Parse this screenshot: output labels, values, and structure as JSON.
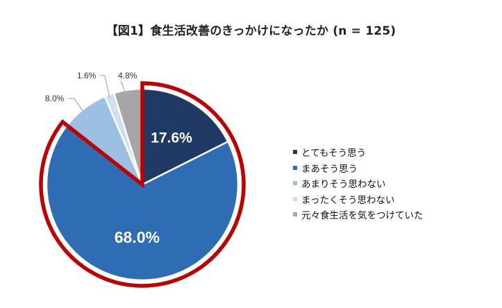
{
  "chart_data": {
    "type": "pie",
    "title": "【図1】食生活改善のきっかけになったか (n = 125)",
    "categories": [
      "とてもそう思う",
      "まあそう思う",
      "あまりそう思わない",
      "まったくそう思わない",
      "元々食生活を気をつけていた"
    ],
    "values": [
      17.6,
      68.0,
      8.0,
      1.6,
      4.8
    ],
    "labels": [
      "17.6%",
      "68.0%",
      "8.0%",
      "1.6%",
      "4.8%"
    ],
    "colors": [
      "#1f3864",
      "#2e6db3",
      "#9cbfe4",
      "#cfe0f3",
      "#a6a6a6"
    ],
    "highlight_color": "#c00000",
    "highlighted_categories": [
      "とてもそう思う",
      "まあそう思う"
    ],
    "legend_placement": "right",
    "start_angle": "12 o'clock, clockwise"
  }
}
